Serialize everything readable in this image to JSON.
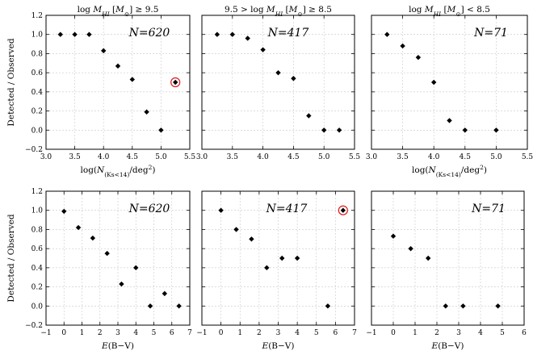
{
  "chart_data": [
    {
      "type": "scatter",
      "id": "p1",
      "title": "log M_HI [M_⊙] ≥ 9.5",
      "xlabel": "log(N_(K_s<14)/deg²)",
      "ylabel": "Detected / Observed",
      "xlim": [
        3.0,
        5.5
      ],
      "ylim": [
        -0.2,
        1.2
      ],
      "xticks": [
        3.0,
        3.5,
        4.0,
        4.5,
        5.0,
        5.5
      ],
      "xtick_labels": [
        "3.0",
        "3.5",
        "4.0",
        "4.5",
        "5.0",
        "5.5"
      ],
      "yticks": [
        -0.2,
        0.0,
        0.2,
        0.4,
        0.6,
        0.8,
        1.0,
        1.2
      ],
      "ytick_labels": [
        "−0.2",
        "0.0",
        "0.2",
        "0.4",
        "0.6",
        "0.8",
        "1.0",
        "1.2"
      ],
      "annotation": "N=620",
      "points": [
        [
          3.25,
          1.0
        ],
        [
          3.5,
          1.0
        ],
        [
          3.75,
          1.0
        ],
        [
          4.0,
          0.83
        ],
        [
          4.25,
          0.67
        ],
        [
          4.5,
          0.53
        ],
        [
          4.75,
          0.19
        ],
        [
          5.0,
          0.0
        ],
        [
          5.25,
          0.5
        ]
      ],
      "highlight": [
        [
          5.25,
          0.5
        ]
      ]
    },
    {
      "type": "scatter",
      "id": "p2",
      "title": "9.5 > log M_HI [M_⊙] ≥ 8.5",
      "xlabel": "",
      "ylabel": "",
      "xlim": [
        3.0,
        5.5
      ],
      "ylim": [
        -0.2,
        1.2
      ],
      "xticks": [
        3.0,
        3.5,
        4.0,
        4.5,
        5.0,
        5.5
      ],
      "xtick_labels": [
        "3.0",
        "3.5",
        "4.0",
        "4.5",
        "5.0",
        "5.5"
      ],
      "yticks": [
        -0.2,
        0.0,
        0.2,
        0.4,
        0.6,
        0.8,
        1.0,
        1.2
      ],
      "ytick_labels": [
        "",
        "",
        "",
        "",
        "",
        "",
        "",
        ""
      ],
      "annotation": "N=417",
      "points": [
        [
          3.25,
          1.0
        ],
        [
          3.5,
          1.0
        ],
        [
          3.75,
          0.96
        ],
        [
          4.0,
          0.84
        ],
        [
          4.25,
          0.6
        ],
        [
          4.5,
          0.54
        ],
        [
          4.75,
          0.15
        ],
        [
          5.0,
          0.0
        ],
        [
          5.25,
          0.0
        ]
      ],
      "highlight": []
    },
    {
      "type": "scatter",
      "id": "p3",
      "title": "log M_HI [M_⊙] < 8.5",
      "xlabel": "log(N_(K_s<14)/deg²)",
      "ylabel": "",
      "xlim": [
        3.0,
        5.5
      ],
      "ylim": [
        -0.2,
        1.2
      ],
      "xticks": [
        3.0,
        3.5,
        4.0,
        4.5,
        5.0,
        5.5
      ],
      "xtick_labels": [
        "3.0",
        "3.5",
        "4.0",
        "4.5",
        "5.0",
        "5.5"
      ],
      "yticks": [
        -0.2,
        0.0,
        0.2,
        0.4,
        0.6,
        0.8,
        1.0,
        1.2
      ],
      "ytick_labels": [
        "",
        "",
        "",
        "",
        "",
        "",
        "",
        ""
      ],
      "annotation": "N=71",
      "points": [
        [
          3.25,
          1.0
        ],
        [
          3.5,
          0.88
        ],
        [
          3.75,
          0.76
        ],
        [
          4.0,
          0.5
        ],
        [
          4.25,
          0.1
        ],
        [
          4.5,
          0.0
        ],
        [
          5.0,
          0.0
        ]
      ],
      "highlight": []
    },
    {
      "type": "scatter",
      "id": "p4",
      "title": "",
      "xlabel": "E(B−V)",
      "ylabel": "Detected / Observed",
      "xlim": [
        -1,
        7
      ],
      "ylim": [
        -0.2,
        1.2
      ],
      "xticks": [
        -1,
        0,
        1,
        2,
        3,
        4,
        5,
        6,
        7
      ],
      "xtick_labels": [
        "−1",
        "0",
        "1",
        "2",
        "3",
        "4",
        "5",
        "6",
        "7"
      ],
      "yticks": [
        -0.2,
        0.0,
        0.2,
        0.4,
        0.6,
        0.8,
        1.0,
        1.2
      ],
      "ytick_labels": [
        "−0.2",
        "0.0",
        "0.2",
        "0.4",
        "0.6",
        "0.8",
        "1.0",
        "1.2"
      ],
      "annotation": "N=620",
      "points": [
        [
          0.0,
          0.99
        ],
        [
          0.8,
          0.82
        ],
        [
          1.6,
          0.71
        ],
        [
          2.4,
          0.55
        ],
        [
          3.2,
          0.23
        ],
        [
          4.0,
          0.4
        ],
        [
          4.8,
          0.0
        ],
        [
          5.6,
          0.13
        ],
        [
          6.4,
          0.0
        ]
      ],
      "highlight": []
    },
    {
      "type": "scatter",
      "id": "p5",
      "title": "",
      "xlabel": "E(B−V)",
      "ylabel": "",
      "xlim": [
        -1,
        7
      ],
      "ylim": [
        -0.2,
        1.2
      ],
      "xticks": [
        -1,
        0,
        1,
        2,
        3,
        4,
        5,
        6,
        7
      ],
      "xtick_labels": [
        "−1",
        "0",
        "1",
        "2",
        "3",
        "4",
        "5",
        "6",
        "7"
      ],
      "yticks": [
        -0.2,
        0.0,
        0.2,
        0.4,
        0.6,
        0.8,
        1.0,
        1.2
      ],
      "ytick_labels": [
        "",
        "",
        "",
        "",
        "",
        "",
        "",
        ""
      ],
      "annotation": "N=417",
      "points": [
        [
          0.0,
          1.0
        ],
        [
          0.8,
          0.8
        ],
        [
          1.6,
          0.7
        ],
        [
          2.4,
          0.4
        ],
        [
          3.2,
          0.5
        ],
        [
          4.0,
          0.5
        ],
        [
          5.6,
          0.0
        ],
        [
          6.4,
          1.0
        ]
      ],
      "highlight": [
        [
          6.4,
          1.0
        ]
      ]
    },
    {
      "type": "scatter",
      "id": "p6",
      "title": "",
      "xlabel": "E(B−V)",
      "ylabel": "",
      "xlim": [
        -1,
        6
      ],
      "ylim": [
        -0.2,
        1.2
      ],
      "xticks": [
        -1,
        0,
        1,
        2,
        3,
        4,
        5,
        6
      ],
      "xtick_labels": [
        "−1",
        "0",
        "1",
        "2",
        "3",
        "4",
        "5",
        "6"
      ],
      "yticks": [
        -0.2,
        0.0,
        0.2,
        0.4,
        0.6,
        0.8,
        1.0,
        1.2
      ],
      "ytick_labels": [
        "",
        "",
        "",
        "",
        "",
        "",
        "",
        ""
      ],
      "annotation": "N=71",
      "points": [
        [
          0.0,
          0.73
        ],
        [
          0.8,
          0.6
        ],
        [
          1.6,
          0.5
        ],
        [
          2.4,
          0.0
        ],
        [
          3.2,
          0.0
        ],
        [
          4.8,
          0.0
        ]
      ],
      "highlight": []
    }
  ]
}
